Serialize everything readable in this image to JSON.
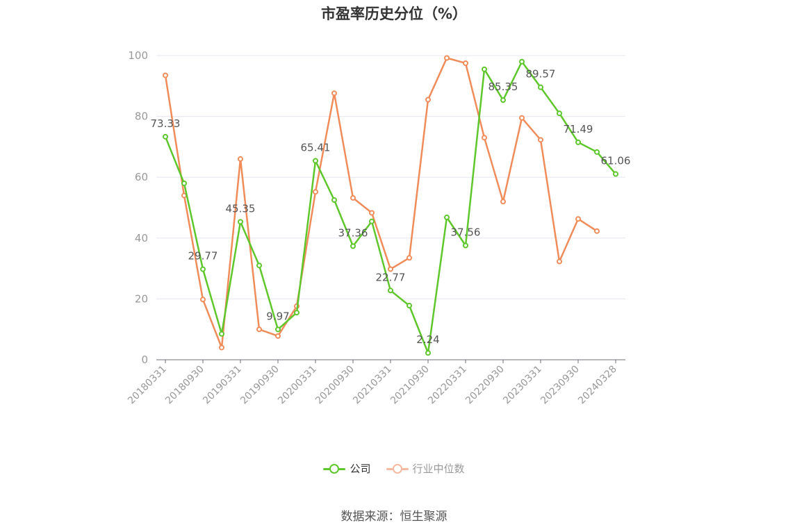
{
  "title": "市盈率历史分位（%）",
  "source": "数据来源：恒生聚源",
  "colors": {
    "company": "#5ec72b",
    "industry": "#f08c5a",
    "industry_legend": "#f7b8a0",
    "axis": "#999999",
    "grid": "#e6e6f0",
    "label": "#555555"
  },
  "legend": [
    {
      "label": "公司",
      "series": "company"
    },
    {
      "label": "行业中位数",
      "series": "industry"
    }
  ],
  "chart_data": {
    "type": "line",
    "x": [
      "20180331",
      "20180630",
      "20180930",
      "20181231",
      "20190331",
      "20190630",
      "20190930",
      "20191231",
      "20200331",
      "20200630",
      "20200930",
      "20201231",
      "20210331",
      "20210630",
      "20210930",
      "20211231",
      "20220331",
      "20220630",
      "20220930",
      "20221231",
      "20230331",
      "20230630",
      "20230930",
      "20231231",
      "20240328"
    ],
    "x_tick_labels": [
      "20180331",
      "20180930",
      "20190331",
      "20190930",
      "20200331",
      "20200930",
      "20210331",
      "20210930",
      "20220331",
      "20220930",
      "20230331",
      "20230930",
      "20240328"
    ],
    "ylim": [
      0,
      100
    ],
    "y_ticks": [
      0,
      20,
      40,
      60,
      80,
      100
    ],
    "grid": true,
    "legend_position": "bottom-center",
    "series": [
      {
        "name": "公司",
        "key": "company",
        "values": [
          73.33,
          58,
          29.77,
          8.5,
          45.35,
          31,
          9.97,
          15.5,
          65.41,
          52.5,
          37.36,
          45.5,
          22.77,
          17.8,
          2.24,
          46.8,
          37.56,
          95.5,
          85.35,
          98,
          89.57,
          81,
          71.49,
          68.3,
          61.06
        ],
        "data_labels": {
          "0": "73.33",
          "2": "29.77",
          "4": "45.35",
          "6": "9.97",
          "8": "65.41",
          "10": "37.36",
          "12": "22.77",
          "14": "2.24",
          "16": "37.56",
          "18": "85.35",
          "20": "89.57",
          "22": "71.49",
          "24": "61.06"
        }
      },
      {
        "name": "行业中位数",
        "key": "industry",
        "values": [
          93.5,
          54,
          19.8,
          4,
          66,
          10,
          7.8,
          17.6,
          55.2,
          87.6,
          53.2,
          48.3,
          29.8,
          33.5,
          85.5,
          99.2,
          97.5,
          73,
          52,
          79.5,
          72.3,
          32.3,
          46.3,
          42.3,
          null
        ]
      }
    ]
  }
}
